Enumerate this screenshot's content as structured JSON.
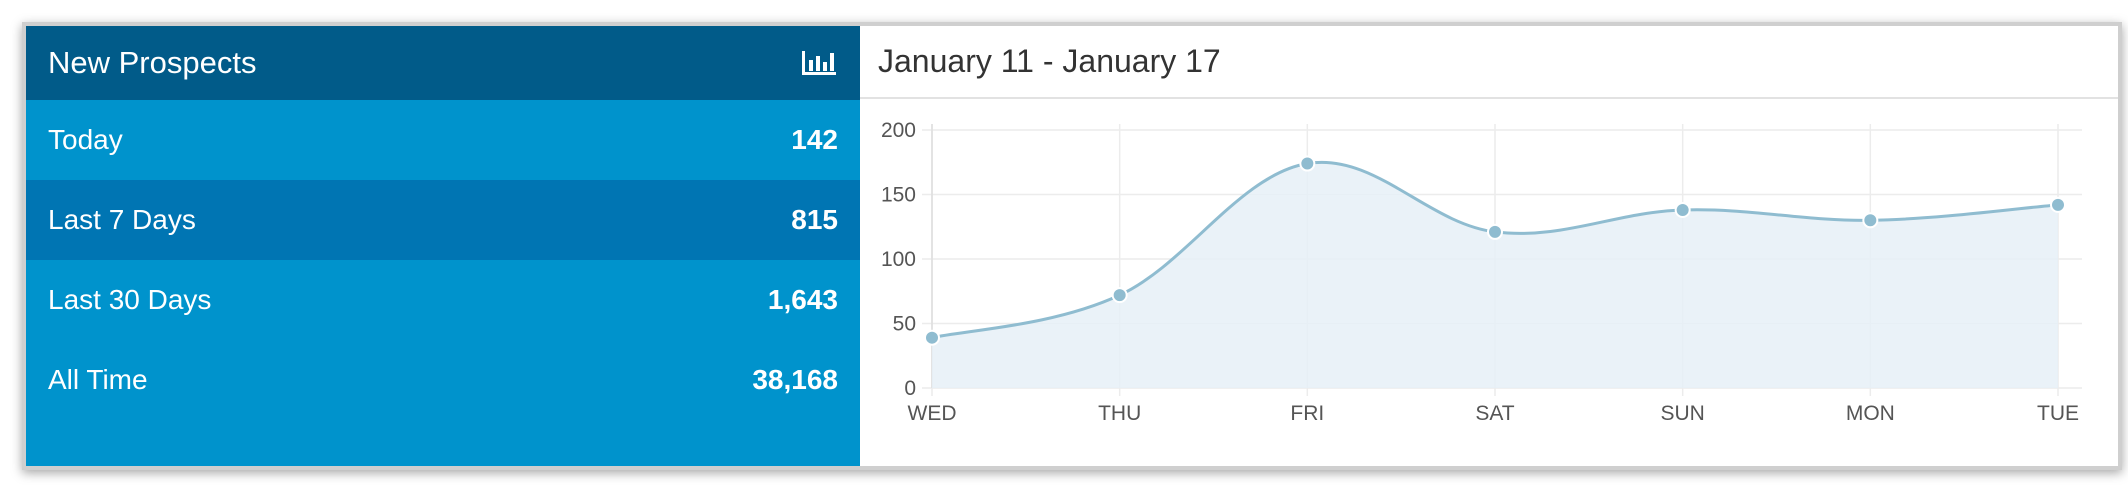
{
  "panel": {
    "title": "New Prospects",
    "icon": "bar-chart-icon",
    "stats": [
      {
        "label": "Today",
        "value": "142"
      },
      {
        "label": "Last 7 Days",
        "value": "815"
      },
      {
        "label": "Last 30 Days",
        "value": "1,643"
      },
      {
        "label": "All Time",
        "value": "38,168"
      }
    ]
  },
  "range_label": "January 11 - January 17",
  "colors": {
    "header_dark": "#015b89",
    "panel_blue": "#0093cc",
    "row_highlight": "#0075b3",
    "line": "#8fbcd0",
    "fill": "#e6f0f7",
    "point": "#8fbcd0"
  },
  "chart_data": {
    "type": "area",
    "categories": [
      "WED",
      "THU",
      "FRI",
      "SAT",
      "SUN",
      "MON",
      "TUE"
    ],
    "series": [
      {
        "values": [
          39,
          72,
          174,
          121,
          138,
          130,
          142
        ]
      }
    ],
    "yticks": [
      0,
      50,
      100,
      150,
      200
    ],
    "ylim": [
      0,
      200
    ],
    "grid": true,
    "smooth": true
  }
}
